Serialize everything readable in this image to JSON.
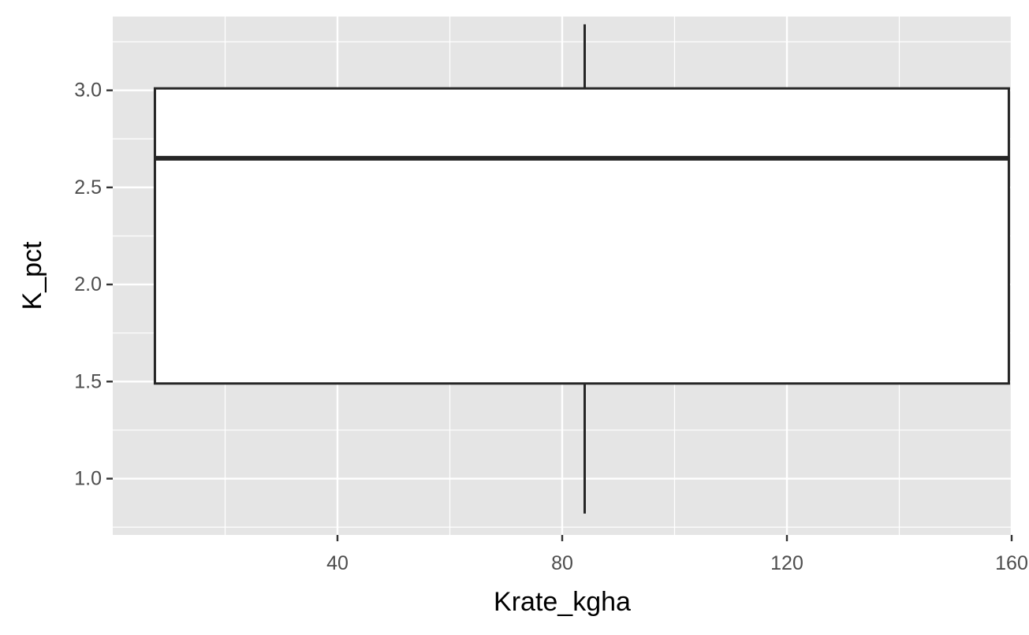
{
  "chart_data": {
    "type": "boxplot",
    "xlabel": "Krate_kgha",
    "ylabel": "K_pct",
    "xlim": [
      0,
      160
    ],
    "ylim": [
      0.71,
      3.38
    ],
    "x_ticks": [
      40,
      80,
      120,
      160
    ],
    "x_tick_labels": [
      "40",
      "80",
      "120",
      "160"
    ],
    "x_minor_ticks": [
      20,
      60,
      100,
      140
    ],
    "y_ticks": [
      1.0,
      1.5,
      2.0,
      2.5,
      3.0
    ],
    "y_tick_labels": [
      "1.0",
      "1.5",
      "2.0",
      "2.5",
      "3.0"
    ],
    "y_minor_ticks": [
      0.75,
      1.25,
      1.75,
      2.25,
      2.75,
      3.25
    ],
    "grid": true,
    "legend": "none",
    "boxes": [
      {
        "x_center": 84,
        "x_min": 7.5,
        "x_max": 159.5,
        "whisker_low": 0.82,
        "q1": 1.49,
        "median": 2.65,
        "q3": 3.01,
        "whisker_high": 3.34
      }
    ]
  },
  "colors": {
    "panel_background": "#e5e5e5",
    "grid_line": "#ffffff",
    "box_fill": "#ffffff",
    "box_stroke": "#262626",
    "tick_mark": "#333333",
    "tick_label": "#4d4d4d",
    "axis_title": "#000000"
  }
}
